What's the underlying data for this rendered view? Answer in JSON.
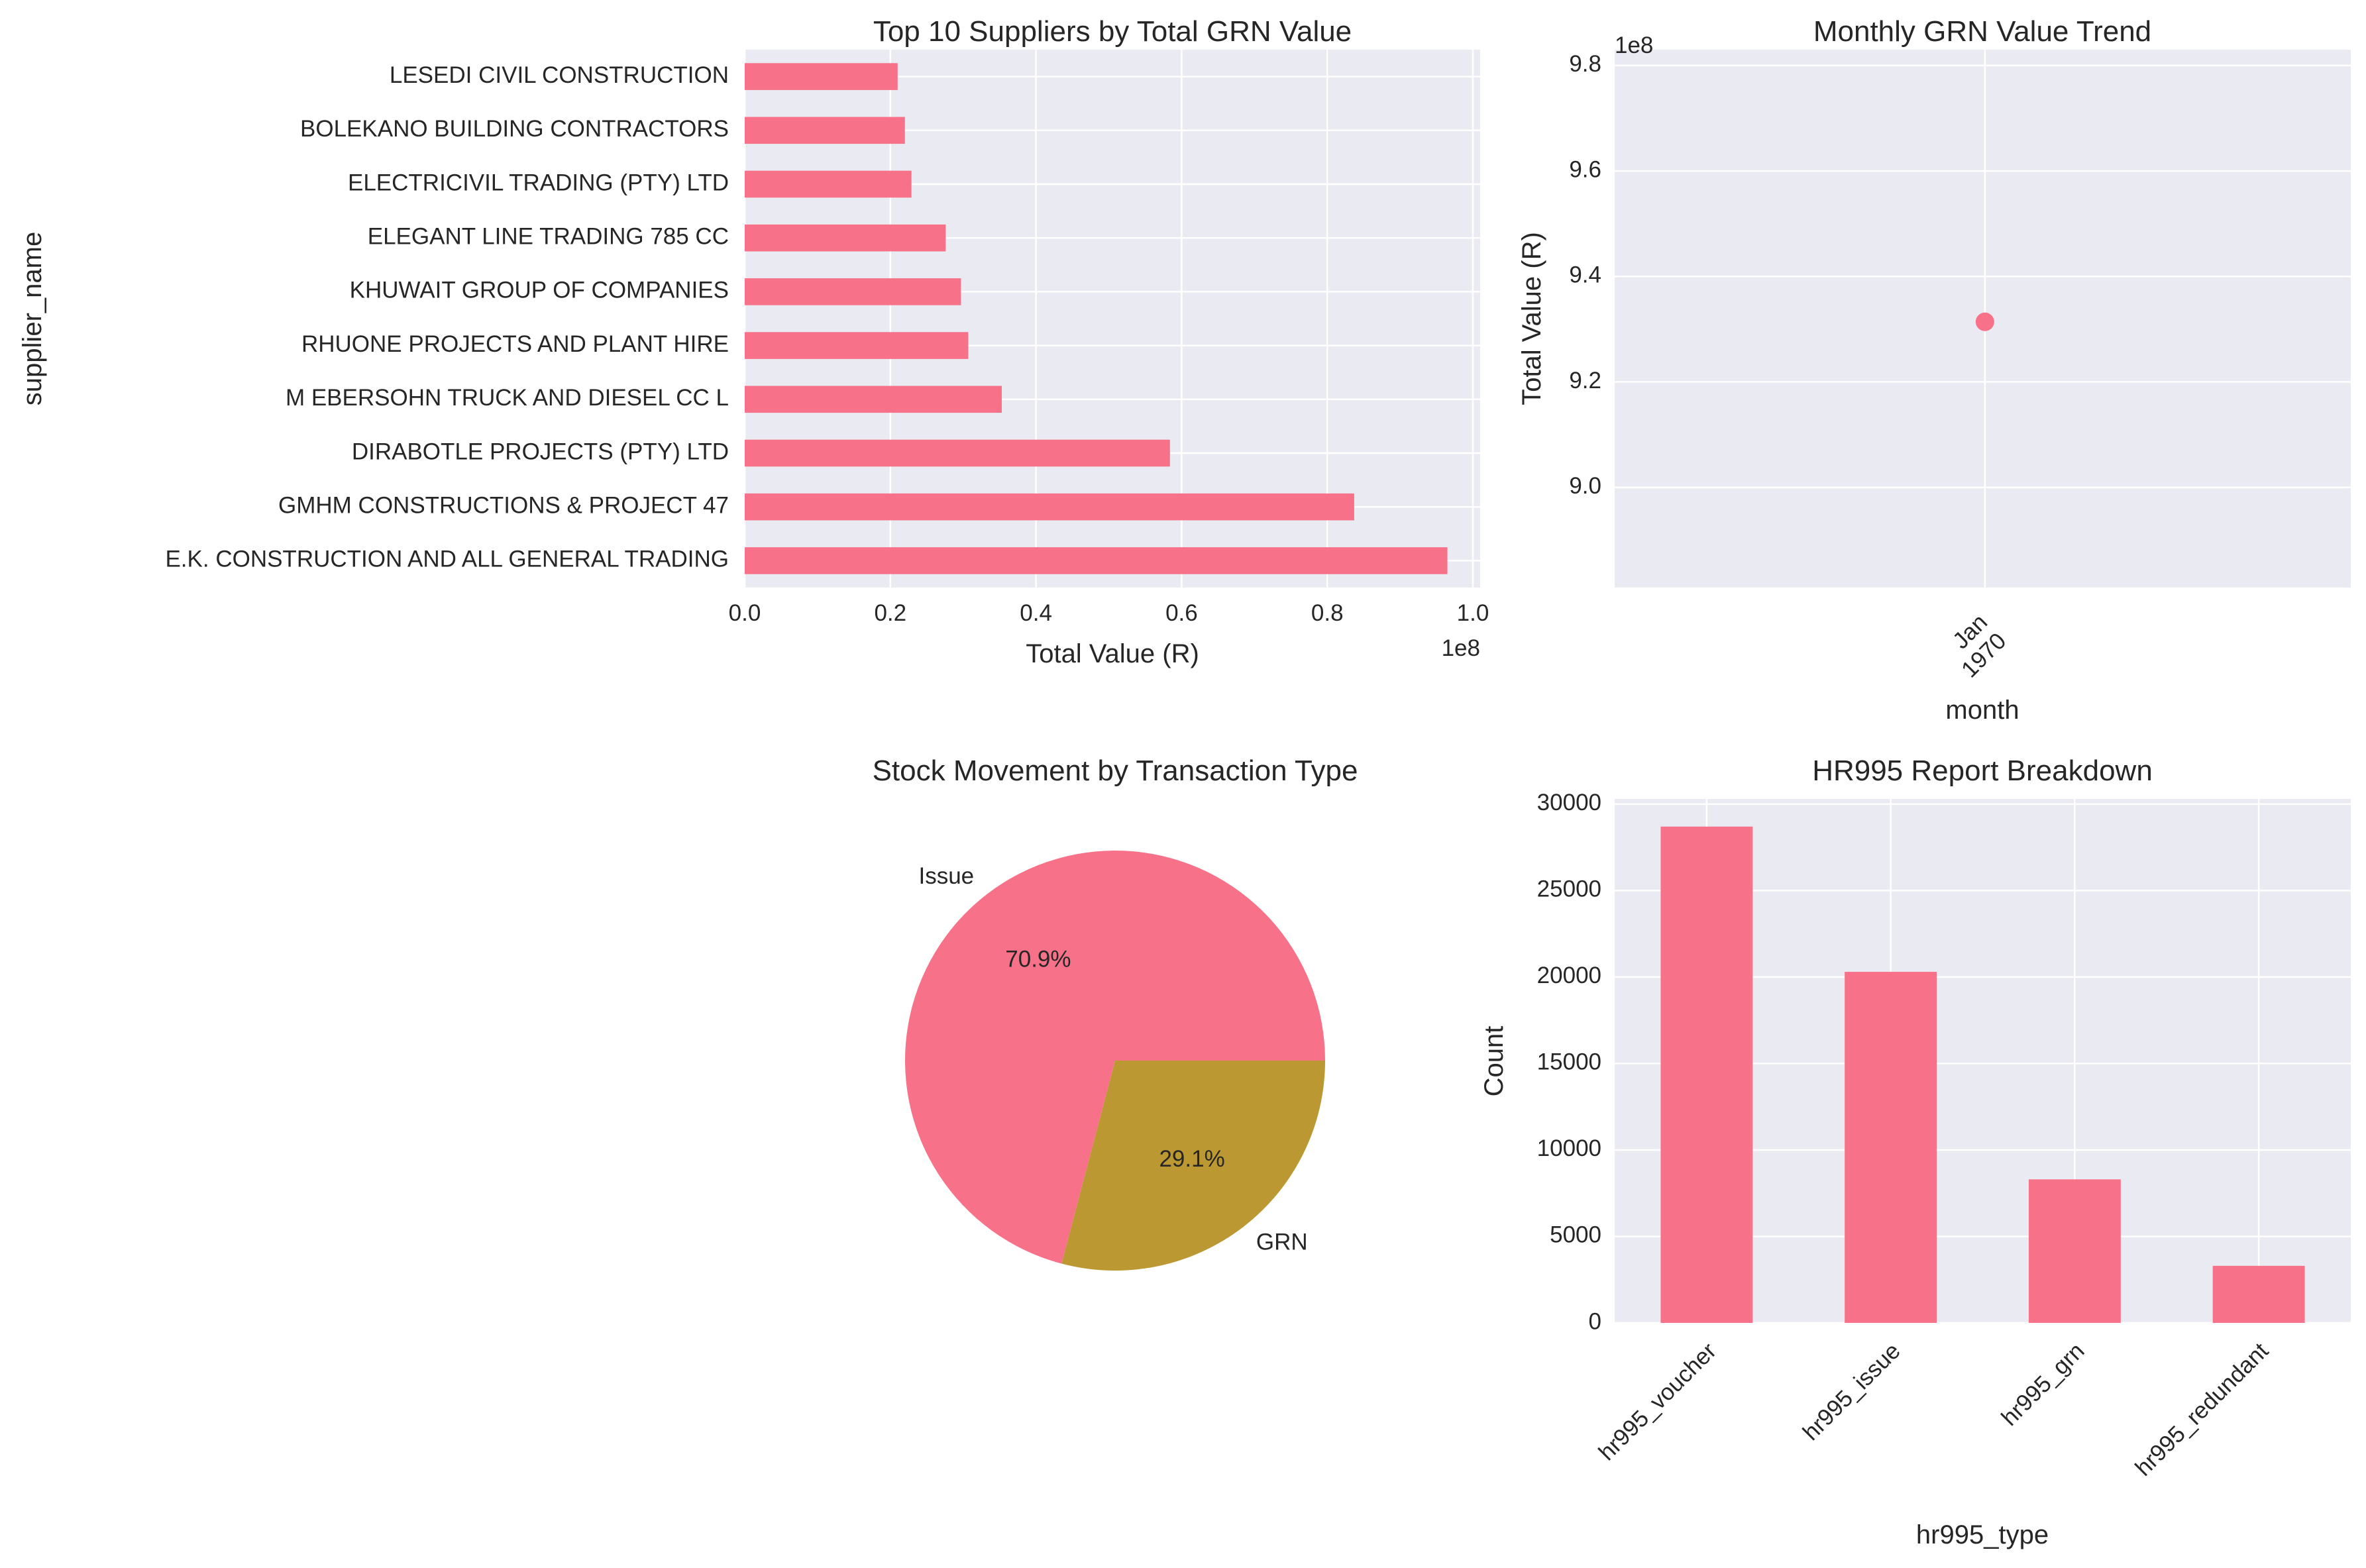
{
  "colors": {
    "pink": "#f77189",
    "olive": "#bb9832",
    "panel_bg": "#eaeaf2",
    "grid": "#ffffff",
    "text": "#262626"
  },
  "chart_data": [
    {
      "type": "bar",
      "orientation": "horizontal",
      "title": "Top 10 Suppliers by Total GRN Value",
      "xlabel": "Total Value (R)",
      "ylabel": "supplier_name",
      "x_offset_label": "1e8",
      "categories": [
        "E.K. CONSTRUCTION AND ALL GENERAL TRADING",
        "GMHM CONSTRUCTIONS & PROJECT 47",
        "DIRABOTLE PROJECTS (PTY) LTD",
        "M EBERSOHN TRUCK AND DIESEL CC              L",
        "RHUONE PROJECTS AND PLANT HIRE",
        "KHUWAIT GROUP OF COMPANIES",
        "ELEGANT LINE TRADING 785 CC",
        "ELECTRICIVIL TRADING (PTY) LTD",
        "BOLEKANO BUILDING CONTRACTORS",
        "LESEDI CIVIL CONSTRUCTION"
      ],
      "values": [
        96500000,
        83700000,
        58400000,
        35300000,
        30700000,
        29700000,
        27600000,
        22900000,
        22000000,
        21000000
      ],
      "xticks": [
        "0.0",
        "0.2",
        "0.4",
        "0.6",
        "0.8",
        "1.0"
      ],
      "xlim": [
        0,
        101000000
      ]
    },
    {
      "type": "line",
      "title": "Monthly GRN Value Trend",
      "xlabel": "month",
      "ylabel": "Total Value (R)",
      "y_offset_label": "1e8",
      "x": [
        "Jan 1970"
      ],
      "x_tick_lines": [
        "Jan",
        "1970"
      ],
      "y": [
        931400000
      ],
      "yticks": [
        "9.0",
        "9.2",
        "9.4",
        "9.6",
        "9.8"
      ],
      "ylim": [
        881000000,
        983000000
      ]
    },
    {
      "type": "pie",
      "title": "Stock Movement by Transaction Type",
      "labels": [
        "Issue",
        "GRN"
      ],
      "percent_labels": [
        "70.9%",
        "29.1%"
      ],
      "values": [
        70.9,
        29.1
      ]
    },
    {
      "type": "bar",
      "title": "HR995 Report Breakdown",
      "xlabel": "hr995_type",
      "ylabel": "Count",
      "categories": [
        "hr995_voucher",
        "hr995_issue",
        "hr995_grn",
        "hr995_redundant"
      ],
      "values": [
        28700,
        20300,
        8300,
        3300
      ],
      "yticks": [
        "0",
        "5000",
        "10000",
        "15000",
        "20000",
        "25000",
        "30000"
      ],
      "ylim": [
        0,
        30300
      ]
    }
  ]
}
